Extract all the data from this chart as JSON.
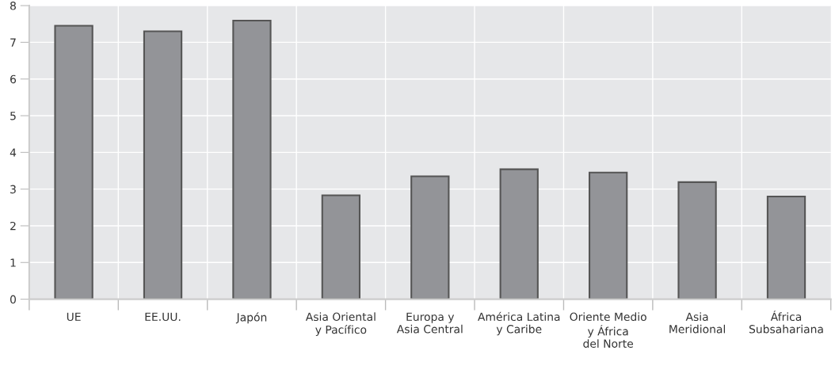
{
  "chart_data": {
    "type": "bar",
    "categories": [
      "UE",
      "EE.UU.",
      "Japón",
      "Asia Oriental\ny Pacífico",
      "Europa y\nAsia Central",
      "América Latina\ny Caribe",
      "Oriente Medio\ny África\ndel Norte",
      "Asia\nMeridional",
      "África\nSubsahariana"
    ],
    "values": [
      7.45,
      7.3,
      7.59,
      2.83,
      3.35,
      3.54,
      3.45,
      3.19,
      2.8
    ],
    "color": "#939498",
    "ylim": [
      0,
      8
    ],
    "yticks": [
      0,
      1,
      2,
      3,
      4,
      5,
      6,
      7,
      8
    ],
    "grid": true
  }
}
